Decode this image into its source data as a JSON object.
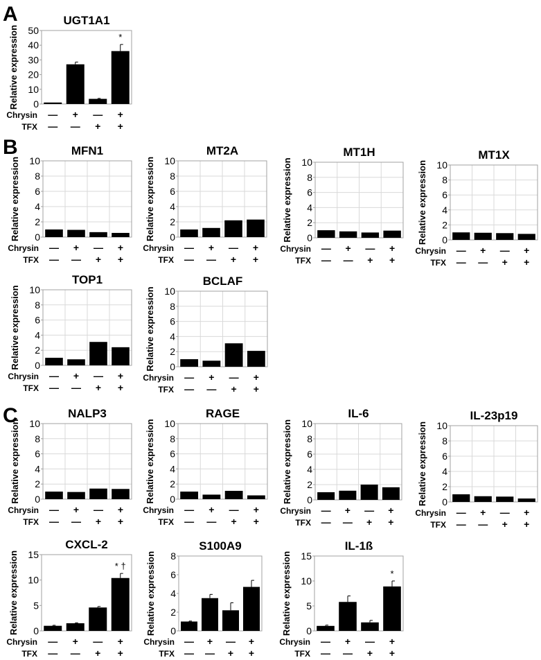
{
  "panel_labels": [
    "A",
    "B",
    "C"
  ],
  "row_labels": {
    "chrysin": "Chrysin",
    "tfx": "TFX"
  },
  "conditions": {
    "chrysin": [
      "—",
      "+",
      "—",
      "+"
    ],
    "tfx": [
      "—",
      "—",
      "+",
      "+"
    ]
  },
  "colors": {
    "bar": "#000000",
    "grid": "#d9d9d9",
    "axis": "#a0a0a0"
  },
  "chart_data": [
    {
      "id": "UGT1A1",
      "panel": "A",
      "type": "bar",
      "title": "UGT1A1",
      "ylabel": "Relative expression",
      "ylim": [
        0,
        50
      ],
      "yticks": [
        0,
        10,
        20,
        30,
        40,
        50
      ],
      "grid": false,
      "categories": [
        "Chrysin−/TFX−",
        "Chrysin+/TFX−",
        "Chrysin−/TFX+",
        "Chrysin+/TFX+"
      ],
      "values": [
        1,
        27,
        3.5,
        36
      ],
      "errors": [
        0,
        1.5,
        0.3,
        4.5
      ],
      "annotations": [
        "",
        "",
        "",
        "*"
      ]
    },
    {
      "id": "MFN1",
      "panel": "B",
      "type": "bar",
      "title": "MFN1",
      "ylabel": "Relative expression",
      "ylim": [
        0,
        10
      ],
      "yticks": [
        0,
        2,
        4,
        6,
        8,
        10
      ],
      "grid": true,
      "categories": [
        "Chrysin−/TFX−",
        "Chrysin+/TFX−",
        "Chrysin−/TFX+",
        "Chrysin+/TFX+"
      ],
      "values": [
        1.0,
        0.95,
        0.65,
        0.55
      ]
    },
    {
      "id": "MT2A",
      "panel": "B",
      "type": "bar",
      "title": "MT2A",
      "ylabel": "Relative expression",
      "ylim": [
        0,
        10
      ],
      "yticks": [
        0,
        2,
        4,
        6,
        8,
        10
      ],
      "grid": true,
      "categories": [
        "Chrysin−/TFX−",
        "Chrysin+/TFX−",
        "Chrysin−/TFX+",
        "Chrysin+/TFX+"
      ],
      "values": [
        1.0,
        1.2,
        2.2,
        2.3
      ]
    },
    {
      "id": "MT1H",
      "panel": "B",
      "type": "bar",
      "title": "MT1H",
      "ylabel": "Relative expression",
      "ylim": [
        0,
        10
      ],
      "yticks": [
        0,
        2,
        4,
        6,
        8,
        10
      ],
      "grid": true,
      "categories": [
        "Chrysin−/TFX−",
        "Chrysin+/TFX−",
        "Chrysin−/TFX+",
        "Chrysin+/TFX+"
      ],
      "values": [
        1.0,
        0.85,
        0.7,
        0.95
      ]
    },
    {
      "id": "MT1X",
      "panel": "B",
      "type": "bar",
      "title": "MT1X",
      "ylabel": "Relative expression",
      "ylim": [
        0,
        10
      ],
      "yticks": [
        0,
        2,
        4,
        6,
        8,
        10
      ],
      "grid": true,
      "categories": [
        "Chrysin−/TFX−",
        "Chrysin+/TFX−",
        "Chrysin−/TFX+",
        "Chrysin+/TFX+"
      ],
      "values": [
        1.0,
        0.95,
        0.9,
        0.8
      ]
    },
    {
      "id": "TOP1",
      "panel": "B",
      "type": "bar",
      "title": "TOP1",
      "ylabel": "Relative expression",
      "ylim": [
        0,
        10
      ],
      "yticks": [
        0,
        2,
        4,
        6,
        8,
        10
      ],
      "grid": true,
      "categories": [
        "Chrysin−/TFX−",
        "Chrysin+/TFX−",
        "Chrysin−/TFX+",
        "Chrysin+/TFX+"
      ],
      "values": [
        1.0,
        0.8,
        3.1,
        2.4
      ]
    },
    {
      "id": "BCLAF",
      "panel": "B",
      "type": "bar",
      "title": "BCLAF",
      "ylabel": "Relative expression",
      "ylim": [
        0,
        10
      ],
      "yticks": [
        0,
        2,
        4,
        6,
        8,
        10
      ],
      "grid": true,
      "categories": [
        "Chrysin−/TFX−",
        "Chrysin+/TFX−",
        "Chrysin−/TFX+",
        "Chrysin+/TFX+"
      ],
      "values": [
        1.0,
        0.8,
        3.1,
        2.1
      ]
    },
    {
      "id": "NALP3",
      "panel": "C",
      "type": "bar",
      "title": "NALP3",
      "ylabel": "Relative expression",
      "ylim": [
        0,
        10
      ],
      "yticks": [
        0,
        2,
        4,
        6,
        8,
        10
      ],
      "grid": true,
      "categories": [
        "Chrysin−/TFX−",
        "Chrysin+/TFX−",
        "Chrysin−/TFX+",
        "Chrysin+/TFX+"
      ],
      "values": [
        1.0,
        0.95,
        1.4,
        1.35
      ]
    },
    {
      "id": "RAGE",
      "panel": "C",
      "type": "bar",
      "title": "RAGE",
      "ylabel": "Relative expression",
      "ylim": [
        0,
        10
      ],
      "yticks": [
        0,
        2,
        4,
        6,
        8,
        10
      ],
      "grid": true,
      "categories": [
        "Chrysin−/TFX−",
        "Chrysin+/TFX−",
        "Chrysin−/TFX+",
        "Chrysin+/TFX+"
      ],
      "values": [
        1.0,
        0.6,
        1.1,
        0.5
      ]
    },
    {
      "id": "IL-6",
      "panel": "C",
      "type": "bar",
      "title": "IL-6",
      "ylabel": "Relative expression",
      "ylim": [
        0,
        10
      ],
      "yticks": [
        0,
        2,
        4,
        6,
        8,
        10
      ],
      "grid": true,
      "categories": [
        "Chrysin−/TFX−",
        "Chrysin+/TFX−",
        "Chrysin−/TFX+",
        "Chrysin+/TFX+"
      ],
      "values": [
        1.0,
        1.2,
        2.0,
        1.65
      ]
    },
    {
      "id": "IL-23p19",
      "panel": "C",
      "type": "bar",
      "title": "IL-23p19",
      "ylabel": "Relative expression",
      "ylim": [
        0,
        10
      ],
      "yticks": [
        0,
        2,
        4,
        6,
        8,
        10
      ],
      "grid": true,
      "categories": [
        "Chrysin−/TFX−",
        "Chrysin+/TFX−",
        "Chrysin−/TFX+",
        "Chrysin+/TFX+"
      ],
      "values": [
        1.0,
        0.75,
        0.7,
        0.45
      ]
    },
    {
      "id": "CXCL-2",
      "panel": "C",
      "type": "bar",
      "title": "CXCL-2",
      "ylabel": "Relative expression",
      "ylim": [
        0,
        15
      ],
      "yticks": [
        0,
        5,
        10,
        15
      ],
      "grid": false,
      "categories": [
        "Chrysin−/TFX−",
        "Chrysin+/TFX−",
        "Chrysin−/TFX+",
        "Chrysin+/TFX+"
      ],
      "values": [
        1.0,
        1.5,
        4.6,
        10.4
      ],
      "errors": [
        0.1,
        0.1,
        0.2,
        0.9
      ],
      "annotations": [
        "",
        "",
        "",
        "* †"
      ]
    },
    {
      "id": "S100A9",
      "panel": "C",
      "type": "bar",
      "title": "S100A9",
      "ylabel": "Relative expression",
      "ylim": [
        0,
        8
      ],
      "yticks": [
        0,
        2,
        4,
        6,
        8
      ],
      "grid": false,
      "categories": [
        "Chrysin−/TFX−",
        "Chrysin+/TFX−",
        "Chrysin−/TFX+",
        "Chrysin+/TFX+"
      ],
      "values": [
        1.0,
        3.5,
        2.2,
        4.7
      ],
      "errors": [
        0.05,
        0.4,
        0.8,
        0.7
      ],
      "annotations": [
        "",
        "",
        "",
        ""
      ]
    },
    {
      "id": "IL-1B",
      "panel": "C",
      "type": "bar",
      "title": "IL-1ß",
      "ylabel": "Relative expression",
      "ylim": [
        0,
        15
      ],
      "yticks": [
        0,
        5,
        10,
        15
      ],
      "grid": false,
      "categories": [
        "Chrysin−/TFX−",
        "Chrysin+/TFX−",
        "Chrysin−/TFX+",
        "Chrysin+/TFX+"
      ],
      "values": [
        1.0,
        5.8,
        1.7,
        8.9
      ],
      "errors": [
        0.15,
        1.2,
        0.4,
        1.1
      ],
      "annotations": [
        "",
        "",
        "",
        "*"
      ]
    }
  ]
}
